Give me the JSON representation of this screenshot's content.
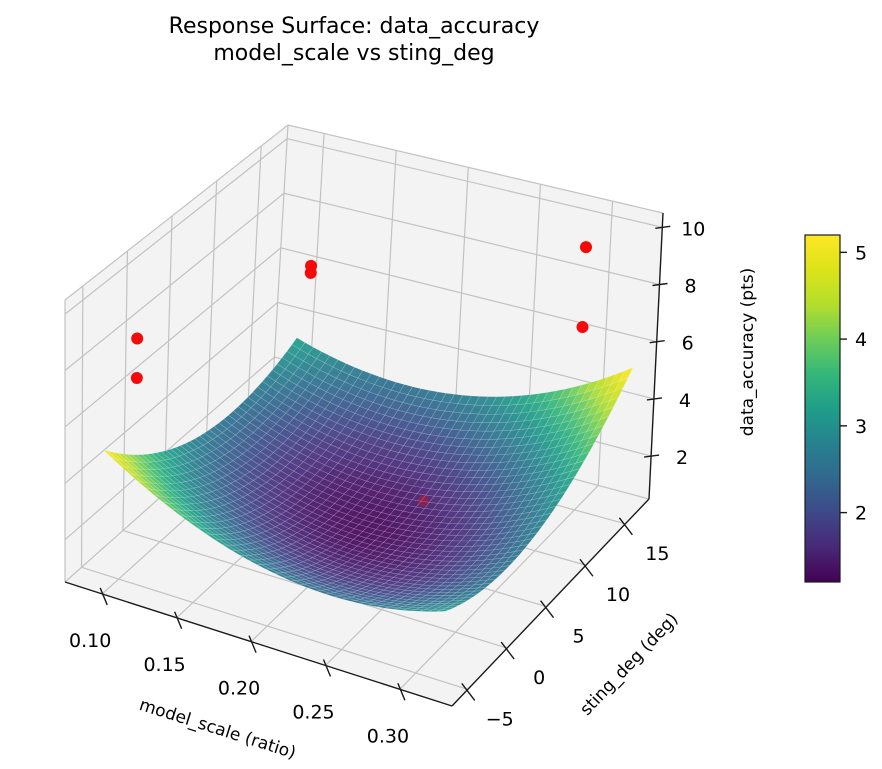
{
  "title": {
    "line1": "Response Surface: data_accuracy",
    "line2": "model_scale vs sting_deg"
  },
  "axes": {
    "x_label": "model_scale (ratio)",
    "y_label": "sting_deg (deg)",
    "z_label": "data_accuracy (pts)"
  },
  "chart_data": {
    "type": "surface",
    "title": "Response Surface: data_accuracy — model_scale vs sting_deg",
    "xlabel": "model_scale (ratio)",
    "ylabel": "sting_deg (deg)",
    "zlabel": "data_accuracy (pts)",
    "x_ticks": {
      "labels": [
        "0.10",
        "0.15",
        "0.20",
        "0.25",
        "0.30"
      ],
      "values": [
        0.1,
        0.15,
        0.2,
        0.25,
        0.3
      ]
    },
    "y_ticks": {
      "labels": [
        "−5",
        "0",
        "5",
        "10",
        "15"
      ],
      "values": [
        -5,
        0,
        5,
        10,
        15
      ]
    },
    "z_ticks": {
      "labels": [
        "2",
        "4",
        "6",
        "8",
        "10"
      ],
      "values": [
        2,
        4,
        6,
        8,
        10
      ]
    },
    "axis_ranges": {
      "x": [
        0.075,
        0.335
      ],
      "y": [
        -7,
        18
      ],
      "z": [
        0.5,
        10.5
      ]
    },
    "grid": true,
    "surface": {
      "description": "elliptic paraboloid response surface; minimum ≈1.25 pts near model_scale≈0.21, sting_deg≈5.5; rises to ≈5.25 pts at corners (0.095,−6) and (0.325,17), ≈3.25 pts at the other two corners",
      "x_range": [
        0.095,
        0.325
      ],
      "y_range": [
        -6,
        17
      ],
      "z_min": 1.25,
      "coeffs": {
        "u_center": 0.21,
        "u_scale": 0.115,
        "v_center": 5.5,
        "v_scale": 11.5,
        "quad_u": 1.5,
        "quad_v": 1.5,
        "cross_uv": 1.0
      },
      "colormap": "viridis",
      "clim": [
        1.2,
        5.2
      ],
      "opacity": 0.92
    },
    "scatter_points": [
      {
        "x": 0.1,
        "y": -3,
        "z": 8.5
      },
      {
        "x": 0.1,
        "y": -3,
        "z": 7.1
      },
      {
        "x": 0.13,
        "y": 12,
        "z": 7.4
      },
      {
        "x": 0.13,
        "y": 12,
        "z": 7.65
      },
      {
        "x": 0.3,
        "y": 15,
        "z": 9.7
      },
      {
        "x": 0.3,
        "y": 15,
        "z": 6.9
      },
      {
        "x": 0.25,
        "y": 5,
        "z": 2.9,
        "occluded": true
      }
    ],
    "point_color": "#f50a0a",
    "colorbar": {
      "colormap": "viridis",
      "range": [
        1.2,
        5.2
      ],
      "tick_labels": [
        "2",
        "3",
        "4",
        "5"
      ],
      "tick_values": [
        2,
        3,
        4,
        5
      ]
    }
  }
}
